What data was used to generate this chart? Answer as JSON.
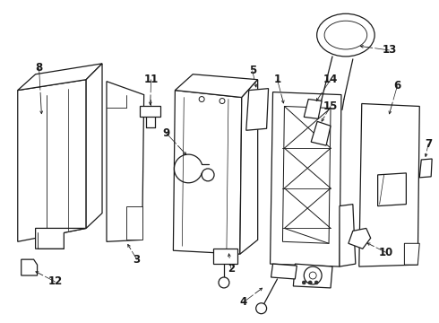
{
  "background_color": "#ffffff",
  "line_color": "#1a1a1a",
  "figsize": [
    4.9,
    3.6
  ],
  "dpi": 100,
  "lw": 0.9,
  "label_fontsize": 8.5
}
